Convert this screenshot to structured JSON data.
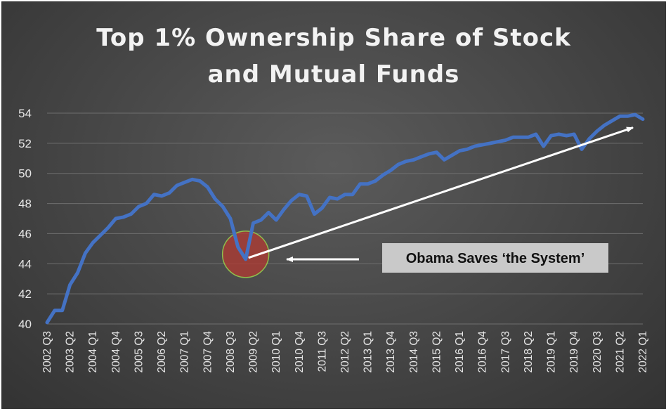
{
  "chart_data": {
    "type": "line",
    "title": [
      "Top 1% Ownership Share of Stock",
      "and Mutual Funds"
    ],
    "ylim": [
      40,
      54
    ],
    "yticks": [
      40,
      42,
      44,
      46,
      48,
      50,
      52,
      54
    ],
    "grid": true,
    "xtick_labels": [
      "2002 Q3",
      "2003 Q2",
      "2004 Q1",
      "2004 Q4",
      "2005 Q3",
      "2006 Q2",
      "2007 Q1",
      "2007 Q4",
      "2008 Q3",
      "2009 Q2",
      "2010 Q1",
      "2010 Q4",
      "2011 Q3",
      "2012 Q2",
      "2013 Q1",
      "2013 Q4",
      "2014 Q3",
      "2015 Q2",
      "2016 Q1",
      "2016 Q4",
      "2017 Q3",
      "2018 Q2",
      "2019 Q1",
      "2019 Q4",
      "2020 Q3",
      "2021 Q2",
      "2022 Q1"
    ],
    "series": [
      {
        "color": "#4472c4",
        "x": [
          "2002 Q3",
          "2002 Q4",
          "2003 Q1",
          "2003 Q2",
          "2003 Q3",
          "2003 Q4",
          "2004 Q1",
          "2004 Q2",
          "2004 Q3",
          "2004 Q4",
          "2005 Q1",
          "2005 Q2",
          "2005 Q3",
          "2005 Q4",
          "2006 Q1",
          "2006 Q2",
          "2006 Q3",
          "2006 Q4",
          "2007 Q1",
          "2007 Q2",
          "2007 Q3",
          "2007 Q4",
          "2008 Q1",
          "2008 Q2",
          "2008 Q3",
          "2008 Q4",
          "2009 Q1",
          "2009 Q2",
          "2009 Q3",
          "2009 Q4",
          "2010 Q1",
          "2010 Q2",
          "2010 Q3",
          "2010 Q4",
          "2011 Q1",
          "2011 Q2",
          "2011 Q3",
          "2011 Q4",
          "2012 Q1",
          "2012 Q2",
          "2012 Q3",
          "2012 Q4",
          "2013 Q1",
          "2013 Q2",
          "2013 Q3",
          "2013 Q4",
          "2014 Q1",
          "2014 Q2",
          "2014 Q3",
          "2014 Q4",
          "2015 Q1",
          "2015 Q2",
          "2015 Q3",
          "2015 Q4",
          "2016 Q1",
          "2016 Q2",
          "2016 Q3",
          "2016 Q4",
          "2017 Q1",
          "2017 Q2",
          "2017 Q3",
          "2017 Q4",
          "2018 Q1",
          "2018 Q2",
          "2018 Q3",
          "2018 Q4",
          "2019 Q1",
          "2019 Q2",
          "2019 Q3",
          "2019 Q4",
          "2020 Q1",
          "2020 Q2",
          "2020 Q3",
          "2020 Q4",
          "2021 Q1",
          "2021 Q2",
          "2021 Q3",
          "2021 Q4",
          "2022 Q1"
        ],
        "values": [
          40.1,
          40.9,
          40.9,
          42.6,
          43.4,
          44.7,
          45.4,
          45.9,
          46.4,
          47.0,
          47.1,
          47.3,
          47.8,
          48.0,
          48.6,
          48.5,
          48.7,
          49.2,
          49.4,
          49.6,
          49.5,
          49.1,
          48.3,
          47.8,
          47.0,
          45.1,
          44.3,
          46.7,
          46.9,
          47.4,
          46.9,
          47.6,
          48.2,
          48.6,
          48.5,
          47.3,
          47.7,
          48.4,
          48.3,
          48.6,
          48.6,
          49.3,
          49.3,
          49.5,
          49.9,
          50.2,
          50.6,
          50.8,
          50.9,
          51.1,
          51.3,
          51.4,
          50.9,
          51.2,
          51.5,
          51.6,
          51.8,
          51.9,
          52.0,
          52.1,
          52.2,
          52.4,
          52.4,
          52.4,
          52.6,
          51.8,
          52.5,
          52.6,
          52.5,
          52.6,
          51.6,
          52.3,
          52.8,
          53.2,
          53.5,
          53.8,
          53.8,
          53.9,
          53.6
        ]
      }
    ],
    "annotation": {
      "text": "Obama Saves ‘the System’",
      "target": "2009 Q1",
      "arrow_to": "2022 Q1"
    }
  }
}
